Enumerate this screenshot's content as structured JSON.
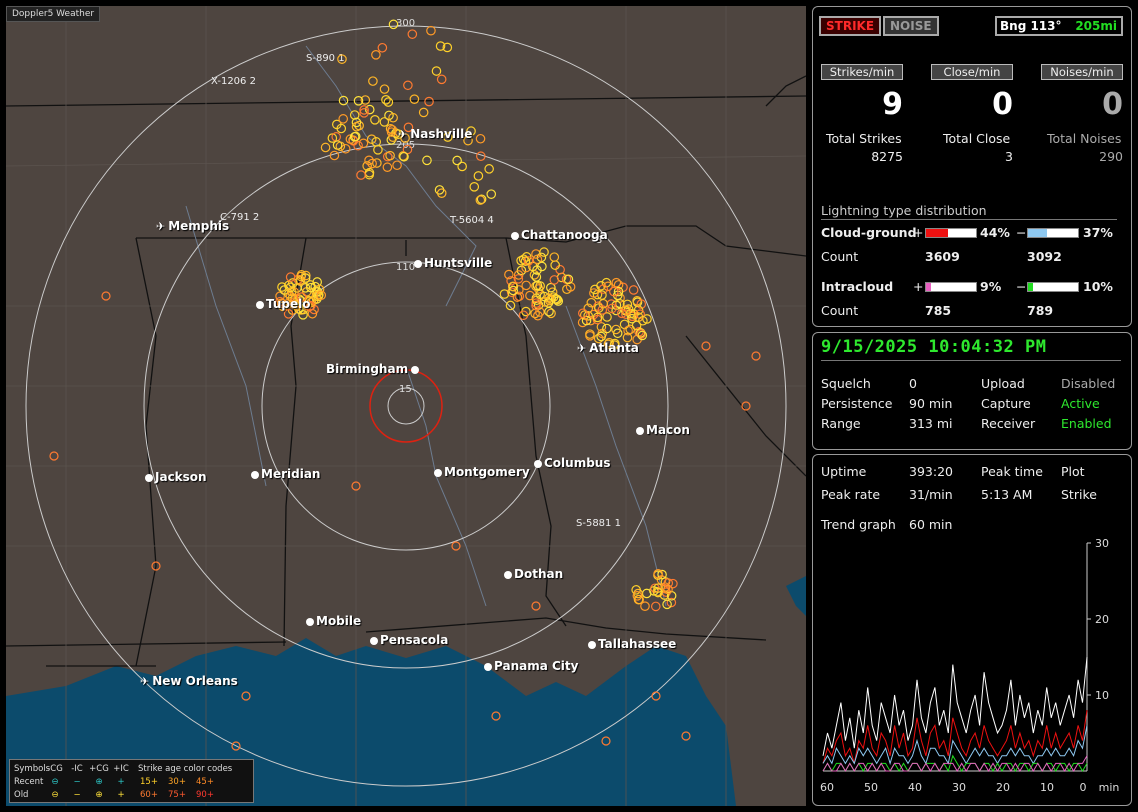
{
  "app_title": "Doppler5 Weather",
  "mode_buttons": {
    "strike": "STRIKE",
    "noise": "NOISE"
  },
  "bearing": {
    "label": "Bng 113°",
    "distance": "205mi"
  },
  "rates": {
    "strikes_label": "Strikes/min",
    "close_label": "Close/min",
    "noises_label": "Noises/min",
    "strikes": "9",
    "close": "0",
    "noises": "0"
  },
  "totals": {
    "strikes_label": "Total Strikes",
    "close_label": "Total Close",
    "noises_label": "Total Noises",
    "strikes": "8275",
    "close": "3",
    "noises": "290"
  },
  "distribution": {
    "title": "Lightning type distribution",
    "cg_label": "Cloud-ground",
    "ic_label": "Intracloud",
    "count_label": "Count",
    "plus": "+",
    "minus": "−",
    "cg_pos_pct": "44%",
    "cg_neg_pct": "37%",
    "cg_pos_count": "3609",
    "cg_neg_count": "3092",
    "ic_pos_pct": "9%",
    "ic_neg_pct": "10%",
    "ic_pos_count": "785",
    "ic_neg_count": "789",
    "cg_pos_frac": 0.44,
    "cg_neg_frac": 0.37,
    "ic_pos_frac": 0.09,
    "ic_neg_frac": 0.1,
    "colors": {
      "cg_pos": "#ee1111",
      "cg_neg": "#8ec8f0",
      "ic_pos": "#e860c0",
      "ic_neg": "#22dd22"
    }
  },
  "status": {
    "datetime": "9/15/2025 10:04:32 PM",
    "squelch_label": "Squelch",
    "squelch": "0",
    "persistence_label": "Persistence",
    "persistence": "90 min",
    "range_label": "Range",
    "range": "313 mi",
    "upload_label": "Upload",
    "upload": "Disabled",
    "capture_label": "Capture",
    "capture": "Active",
    "receiver_label": "Receiver",
    "receiver": "Enabled"
  },
  "stats": {
    "uptime_label": "Uptime",
    "uptime": "393:20",
    "peak_time_label": "Peak time",
    "peak_time": "5:13 AM",
    "plot_label": "Plot",
    "plot": "Strike",
    "peak_rate_label": "Peak rate",
    "peak_rate": "31/min",
    "trend_label": "Trend graph",
    "trend": "60 min"
  },
  "chart_data": {
    "type": "line",
    "x_ticks": [
      "60",
      "50",
      "40",
      "30",
      "20",
      "10",
      "0",
      "min"
    ],
    "y_ticks": [
      "30",
      "20",
      "10"
    ],
    "ylim": [
      0,
      30
    ],
    "series": [
      {
        "color": "#ffffff",
        "values": [
          2,
          5,
          3,
          6,
          9,
          4,
          7,
          3,
          8,
          5,
          11,
          6,
          4,
          9,
          7,
          5,
          10,
          6,
          8,
          4,
          6,
          12,
          7,
          5,
          9,
          11,
          6,
          8,
          5,
          14,
          9,
          7,
          5,
          8,
          10,
          6,
          13,
          9,
          7,
          5,
          6,
          8,
          12,
          6,
          10,
          7,
          9,
          5,
          8,
          6,
          11,
          7,
          9,
          6,
          8,
          10,
          7,
          12,
          9,
          15
        ]
      },
      {
        "color": "#ee1111",
        "values": [
          1,
          3,
          2,
          4,
          5,
          2,
          3,
          1,
          4,
          3,
          6,
          3,
          2,
          5,
          4,
          2,
          6,
          3,
          5,
          2,
          3,
          7,
          4,
          2,
          5,
          6,
          3,
          4,
          2,
          7,
          5,
          3,
          2,
          4,
          5,
          3,
          6,
          4,
          3,
          2,
          3,
          4,
          6,
          3,
          5,
          3,
          4,
          2,
          4,
          3,
          6,
          3,
          5,
          3,
          4,
          5,
          3,
          6,
          4,
          8
        ]
      },
      {
        "color": "#8ec8f0",
        "values": [
          1,
          2,
          1,
          3,
          2,
          1,
          2,
          1,
          3,
          2,
          3,
          2,
          1,
          2,
          3,
          1,
          3,
          2,
          2,
          1,
          2,
          4,
          2,
          1,
          3,
          3,
          2,
          2,
          1,
          4,
          3,
          2,
          1,
          2,
          3,
          2,
          3,
          2,
          2,
          1,
          2,
          2,
          3,
          2,
          3,
          2,
          2,
          1,
          2,
          2,
          3,
          2,
          3,
          2,
          2,
          3,
          2,
          4,
          3,
          6
        ]
      },
      {
        "color": "#22dd22",
        "values": [
          0,
          1,
          0,
          1,
          1,
          0,
          1,
          0,
          1,
          0,
          1,
          1,
          0,
          1,
          1,
          0,
          1,
          0,
          1,
          0,
          1,
          1,
          0,
          1,
          1,
          1,
          0,
          1,
          0,
          2,
          1,
          0,
          1,
          1,
          1,
          0,
          1,
          1,
          0,
          1,
          0,
          1,
          1,
          0,
          1,
          1,
          0,
          1,
          1,
          0,
          1,
          1,
          0,
          1,
          1,
          0,
          1,
          1,
          0,
          1
        ]
      },
      {
        "color": "#e860c0",
        "values": [
          0,
          1,
          0,
          0,
          1,
          0,
          1,
          0,
          1,
          1,
          0,
          1,
          0,
          1,
          0,
          0,
          1,
          1,
          0,
          0,
          1,
          1,
          0,
          1,
          0,
          1,
          0,
          1,
          1,
          1,
          0,
          1,
          0,
          1,
          1,
          0,
          1,
          0,
          1,
          0,
          1,
          1,
          0,
          1,
          0,
          1,
          1,
          0,
          1,
          0,
          1,
          0,
          1,
          1,
          0,
          1,
          0,
          1,
          1,
          2
        ]
      }
    ]
  },
  "map": {
    "cities": [
      {
        "name": "Nashville",
        "type": "airport"
      },
      {
        "name": "Memphis",
        "type": "airport"
      },
      {
        "name": "Chattanooga",
        "type": "city"
      },
      {
        "name": "Huntsville",
        "type": "city"
      },
      {
        "name": "Tupelo",
        "type": "city"
      },
      {
        "name": "Atlanta",
        "type": "airport"
      },
      {
        "name": "Birmingham",
        "type": "city"
      },
      {
        "name": "Macon",
        "type": "city"
      },
      {
        "name": "Jackson",
        "type": "city"
      },
      {
        "name": "Meridian",
        "type": "city"
      },
      {
        "name": "Montgomery",
        "type": "city"
      },
      {
        "name": "Columbus",
        "type": "city"
      },
      {
        "name": "Dothan",
        "type": "city"
      },
      {
        "name": "Mobile",
        "type": "city"
      },
      {
        "name": "Pensacola",
        "type": "city"
      },
      {
        "name": "Tallahassee",
        "type": "city"
      },
      {
        "name": "Panama City",
        "type": "city"
      },
      {
        "name": "New Orleans",
        "type": "airport"
      }
    ],
    "range_labels": [
      "300",
      "205",
      "110",
      "15"
    ],
    "storm_tags": [
      "S-890 1",
      "X-1206 2",
      "C-791 2",
      "T-5604 4",
      "S-5881 1",
      "3"
    ]
  },
  "legend": {
    "symbols_label": "Symbols",
    "cg_neg": "-CG",
    "ic_neg": "-IC",
    "cg_pos": "+CG",
    "ic_pos": "+IC",
    "age_label": "Strike age color codes",
    "recent_label": "Recent",
    "old_label": "Old",
    "ages_recent": [
      "15+",
      "30+",
      "45+"
    ],
    "ages_old": [
      "60+",
      "75+",
      "90+"
    ]
  }
}
